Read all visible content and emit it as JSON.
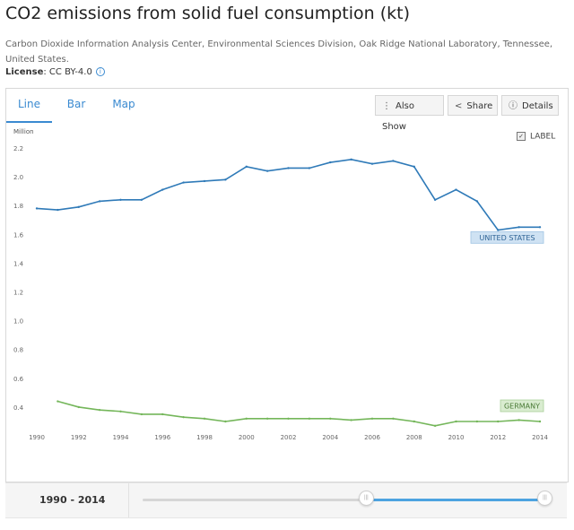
{
  "header": {
    "title": "CO2 emissions from solid fuel consumption (kt)",
    "source": "Carbon Dioxide Information Analysis Center, Environmental Sciences Division, Oak Ridge National Laboratory, Tennessee, United States.",
    "license_label": "License",
    "license_value": ": CC BY-4.0",
    "info_icon": "info-icon"
  },
  "tabs": [
    {
      "label": "Line",
      "active": true
    },
    {
      "label": "Bar",
      "active": false
    },
    {
      "label": "Map",
      "active": false
    }
  ],
  "toolbar": {
    "also_show": "Also Show",
    "share": "Share",
    "details": "Details",
    "label_toggle": "LABEL",
    "label_checked": true
  },
  "range": {
    "text": "1990 - 2014",
    "start": 1990,
    "end": 2014,
    "min": 1960,
    "max": 2014
  },
  "colors": {
    "accent": "#3a8ad1",
    "us_line": "#2f7ab8",
    "germany_line": "#74b65a",
    "us_label_bg": "#cfe2f3",
    "germany_label_bg": "#d9ecd0"
  },
  "chart_data": {
    "type": "line",
    "title": "CO2 emissions from solid fuel consumption (kt)",
    "unit_label": "Million",
    "x": [
      1990,
      1991,
      1992,
      1993,
      1994,
      1995,
      1996,
      1997,
      1998,
      1999,
      2000,
      2001,
      2002,
      2003,
      2004,
      2005,
      2006,
      2007,
      2008,
      2009,
      2010,
      2011,
      2012,
      2013,
      2014
    ],
    "x_ticks": [
      "1990",
      "1992",
      "1994",
      "1996",
      "1998",
      "2000",
      "2002",
      "2004",
      "2006",
      "2008",
      "2010",
      "2012",
      "2014"
    ],
    "y_ticks": [
      "0.4",
      "0.6",
      "0.8",
      "1.0",
      "1.2",
      "1.4",
      "1.6",
      "1.8",
      "2.0",
      "2.2"
    ],
    "ylim": [
      0.3,
      2.2
    ],
    "series": [
      {
        "name": "UNITED STATES",
        "values": [
          1.78,
          1.77,
          1.79,
          1.83,
          1.84,
          1.84,
          1.91,
          1.96,
          1.97,
          1.98,
          2.07,
          2.04,
          2.06,
          2.06,
          2.1,
          2.12,
          2.09,
          2.11,
          2.07,
          1.84,
          1.91,
          1.83,
          1.63,
          1.65,
          1.65
        ]
      },
      {
        "name": "GERMANY",
        "values": [
          null,
          0.44,
          0.4,
          0.38,
          0.37,
          0.35,
          0.35,
          0.33,
          0.32,
          0.3,
          0.32,
          0.32,
          0.32,
          0.32,
          0.32,
          0.31,
          0.32,
          0.32,
          0.3,
          0.27,
          0.3,
          0.3,
          0.3,
          0.31,
          0.3
        ]
      }
    ],
    "grid": false,
    "legend": "end-of-line labels"
  }
}
